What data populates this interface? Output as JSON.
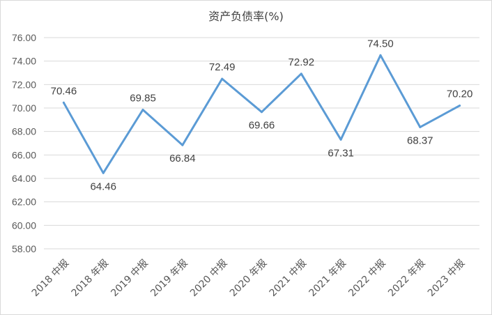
{
  "chart_data": {
    "type": "line",
    "title": "资产负债率(%)",
    "categories": [
      "2018 中报",
      "2018 年报",
      "2019 中报",
      "2019 年报",
      "2020 中报",
      "2020 年报",
      "2021 中报",
      "2021 年报",
      "2022 中报",
      "2022 年报",
      "2023 中报"
    ],
    "series": [
      {
        "values": [
          70.46,
          64.46,
          69.85,
          66.84,
          72.49,
          69.66,
          72.92,
          67.31,
          74.5,
          68.37,
          70.2
        ],
        "color": "#5b9bd5"
      }
    ],
    "ylim": [
      58,
      76
    ],
    "yticks": [
      "58.00",
      "60.00",
      "62.00",
      "64.00",
      "66.00",
      "68.00",
      "70.00",
      "72.00",
      "74.00",
      "76.00"
    ],
    "data_labels": [
      "70.46",
      "64.46",
      "69.85",
      "66.84",
      "72.49",
      "69.66",
      "72.92",
      "67.31",
      "74.50",
      "68.37",
      "70.20"
    ],
    "grid": true,
    "legend": "none",
    "gridline_color": "#d9d9d9",
    "text_color": "#595959"
  }
}
